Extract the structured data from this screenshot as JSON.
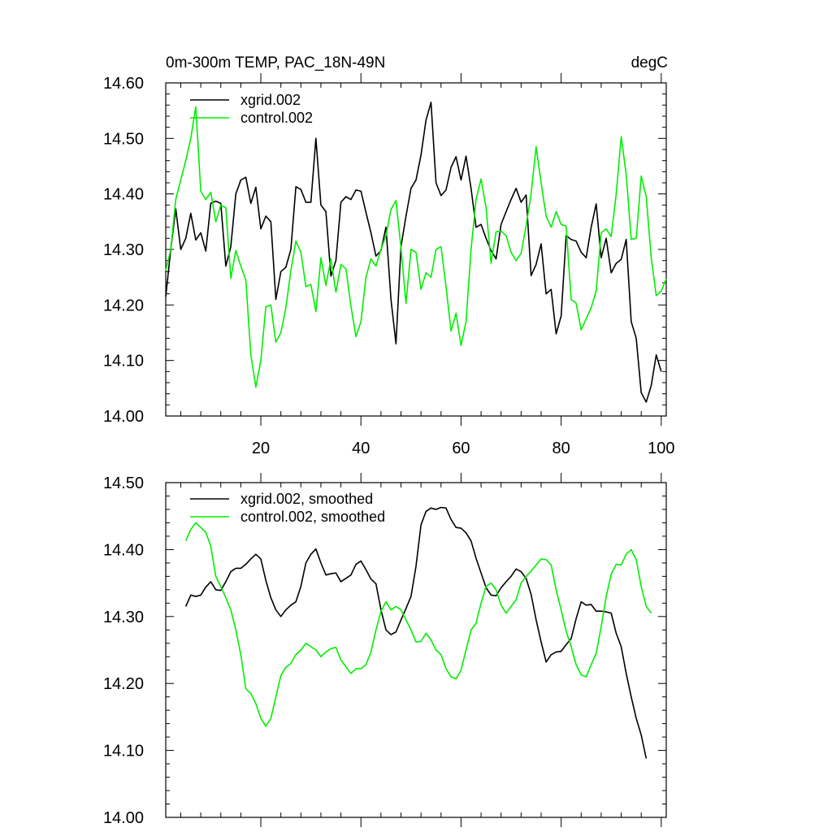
{
  "chart_data": [
    {
      "type": "line",
      "title": "0m-300m TEMP, PAC_18N-49N",
      "units": "degC",
      "xlim": [
        1,
        101
      ],
      "ylim": [
        14.0,
        14.6
      ],
      "yticks": [
        "14.00",
        "14.10",
        "14.20",
        "14.30",
        "14.40",
        "14.50",
        "14.60"
      ],
      "yticks_values": [
        14.0,
        14.1,
        14.2,
        14.3,
        14.4,
        14.5,
        14.6
      ],
      "xticks": [
        "20",
        "40",
        "60",
        "80",
        "100"
      ],
      "xticks_values": [
        20,
        40,
        60,
        80,
        100
      ],
      "show_xtick_labels": true,
      "x_start": 1,
      "series": [
        {
          "name": "xgrid.002",
          "color": "#000000",
          "values": [
            14.215,
            14.3,
            14.373,
            14.3,
            14.32,
            14.365,
            14.317,
            14.33,
            14.297,
            14.383,
            14.387,
            14.383,
            14.27,
            14.305,
            14.4,
            14.425,
            14.43,
            14.383,
            14.412,
            14.337,
            14.36,
            14.35,
            14.21,
            14.26,
            14.268,
            14.3,
            14.413,
            14.408,
            14.385,
            14.385,
            14.5,
            14.38,
            14.368,
            14.252,
            14.28,
            14.385,
            14.395,
            14.39,
            14.407,
            14.405,
            14.367,
            14.33,
            14.288,
            14.298,
            14.34,
            14.21,
            14.13,
            14.305,
            14.36,
            14.41,
            14.425,
            14.47,
            14.533,
            14.565,
            14.42,
            14.397,
            14.407,
            14.448,
            14.467,
            14.425,
            14.468,
            14.41,
            14.34,
            14.345,
            14.32,
            14.298,
            14.283,
            14.345,
            14.368,
            14.39,
            14.41,
            14.385,
            14.398,
            14.253,
            14.273,
            14.31,
            14.22,
            14.228,
            14.148,
            14.18,
            14.325,
            14.318,
            14.315,
            14.295,
            14.285,
            14.34,
            14.382,
            14.285,
            14.32,
            14.258,
            14.275,
            14.282,
            14.318,
            14.17,
            14.14,
            14.042,
            14.025,
            14.055,
            14.11,
            14.08
          ]
        },
        {
          "name": "control.002",
          "color": "#00ee00",
          "values": [
            14.262,
            14.3,
            14.39,
            14.425,
            14.46,
            14.5,
            14.557,
            14.405,
            14.39,
            14.403,
            14.35,
            14.38,
            14.375,
            14.248,
            14.298,
            14.27,
            14.245,
            14.11,
            14.052,
            14.1,
            14.197,
            14.2,
            14.133,
            14.15,
            14.195,
            14.262,
            14.315,
            14.295,
            14.233,
            14.237,
            14.188,
            14.285,
            14.235,
            14.283,
            14.223,
            14.273,
            14.265,
            14.198,
            14.143,
            14.17,
            14.25,
            14.283,
            14.27,
            14.3,
            14.325,
            14.372,
            14.388,
            14.303,
            14.203,
            14.3,
            14.295,
            14.228,
            14.258,
            14.25,
            14.3,
            14.305,
            14.233,
            14.153,
            14.185,
            14.127,
            14.17,
            14.3,
            14.39,
            14.427,
            14.375,
            14.275,
            14.332,
            14.333,
            14.325,
            14.295,
            14.28,
            14.293,
            14.343,
            14.4,
            14.485,
            14.42,
            14.36,
            14.34,
            14.368,
            14.345,
            14.342,
            14.21,
            14.203,
            14.155,
            14.175,
            14.195,
            14.225,
            14.33,
            14.337,
            14.323,
            14.4,
            14.503,
            14.435,
            14.318,
            14.32,
            14.432,
            14.395,
            14.285,
            14.217,
            14.225,
            14.247
          ]
        }
      ],
      "legend": [
        "xgrid.002",
        "control.002"
      ],
      "legend_position": "top-left"
    },
    {
      "type": "line",
      "title": "",
      "xlim": [
        1,
        101
      ],
      "ylim": [
        14.0,
        14.5
      ],
      "yticks": [
        "14.00",
        "14.10",
        "14.20",
        "14.30",
        "14.40",
        "14.50"
      ],
      "yticks_values": [
        14.0,
        14.1,
        14.2,
        14.3,
        14.4,
        14.5
      ],
      "xticks_values": [
        20,
        40,
        60,
        80,
        100
      ],
      "show_xtick_labels": false,
      "x_start": 5,
      "series": [
        {
          "name": "xgrid.002, smoothed",
          "color": "#000000",
          "values": [
            14.315,
            14.332,
            14.33,
            14.332,
            14.344,
            14.352,
            14.34,
            14.339,
            14.352,
            14.367,
            14.372,
            14.372,
            14.378,
            14.386,
            14.393,
            14.386,
            14.354,
            14.328,
            14.31,
            14.3,
            14.31,
            14.317,
            14.322,
            14.345,
            14.38,
            14.393,
            14.401,
            14.38,
            14.362,
            14.364,
            14.365,
            14.352,
            14.357,
            14.362,
            14.378,
            14.383,
            14.37,
            14.356,
            14.349,
            14.31,
            14.28,
            14.273,
            14.277,
            14.295,
            14.312,
            14.33,
            14.375,
            14.437,
            14.457,
            14.462,
            14.46,
            14.463,
            14.462,
            14.445,
            14.433,
            14.432,
            14.425,
            14.413,
            14.387,
            14.365,
            14.343,
            14.332,
            14.331,
            14.343,
            14.352,
            14.36,
            14.371,
            14.367,
            14.357,
            14.333,
            14.295,
            14.262,
            14.232,
            14.243,
            14.247,
            14.248,
            14.258,
            14.267,
            14.297,
            14.322,
            14.317,
            14.318,
            14.308,
            14.308,
            14.307,
            14.305,
            14.275,
            14.255,
            14.215,
            14.18,
            14.148,
            14.123,
            14.088
          ]
        },
        {
          "name": "control.002, smoothed",
          "color": "#00ee00",
          "values": [
            14.413,
            14.43,
            14.44,
            14.433,
            14.426,
            14.405,
            14.36,
            14.345,
            14.328,
            14.31,
            14.28,
            14.243,
            14.192,
            14.185,
            14.17,
            14.148,
            14.136,
            14.148,
            14.18,
            14.212,
            14.224,
            14.23,
            14.243,
            14.25,
            14.26,
            14.255,
            14.25,
            14.24,
            14.247,
            14.252,
            14.254,
            14.235,
            14.225,
            14.215,
            14.222,
            14.222,
            14.228,
            14.247,
            14.28,
            14.308,
            14.322,
            14.31,
            14.315,
            14.31,
            14.295,
            14.28,
            14.262,
            14.263,
            14.275,
            14.265,
            14.25,
            14.243,
            14.222,
            14.21,
            14.207,
            14.22,
            14.25,
            14.28,
            14.29,
            14.32,
            14.345,
            14.35,
            14.34,
            14.317,
            14.305,
            14.315,
            14.325,
            14.35,
            14.36,
            14.368,
            14.377,
            14.386,
            14.385,
            14.377,
            14.34,
            14.31,
            14.278,
            14.255,
            14.228,
            14.213,
            14.21,
            14.228,
            14.245,
            14.285,
            14.33,
            14.363,
            14.378,
            14.377,
            14.393,
            14.4,
            14.385,
            14.345,
            14.315,
            14.305
          ]
        }
      ],
      "legend": [
        "xgrid.002, smoothed",
        "control.002, smoothed"
      ],
      "legend_position": "top-left"
    }
  ]
}
